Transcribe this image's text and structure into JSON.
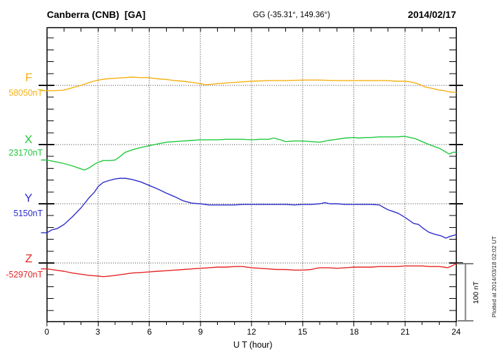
{
  "header": {
    "station_title": "Canberra (CNB)  [GA]",
    "geo_coords": "GG (-35.31°, 149.36°)",
    "date": "2014/02/17"
  },
  "x_axis": {
    "tick_labels": [
      "0",
      "3",
      "6",
      "9",
      "12",
      "15",
      "18",
      "21",
      "24"
    ],
    "title": "U T (hour)"
  },
  "scale_bar": {
    "label": "100 nT"
  },
  "plotted_note": "Plotted at 2014/03/18 02:02 UT",
  "chart_data": {
    "type": "line",
    "title": "Canberra (CNB) [GA] magnetogram 2014/02/17",
    "xlabel": "U T (hour)",
    "x_range": [
      0,
      24
    ],
    "x_gridlines_hours": [
      3,
      6,
      9,
      12,
      15,
      18,
      21
    ],
    "nT_per_division": 100,
    "grid": "dotted",
    "series": [
      {
        "component": "F",
        "label": "F",
        "base_label": "58050nT",
        "base_nT": 58050,
        "color": "#F5B011",
        "points": [
          [
            0,
            58041
          ],
          [
            0.5,
            58041
          ],
          [
            1,
            58042
          ],
          [
            1.5,
            58046
          ],
          [
            2,
            58050
          ],
          [
            2.5,
            58055
          ],
          [
            3,
            58059
          ],
          [
            3.5,
            58061
          ],
          [
            4,
            58062
          ],
          [
            4.5,
            58063
          ],
          [
            5,
            58064
          ],
          [
            5.5,
            58063
          ],
          [
            6,
            58063
          ],
          [
            6.5,
            58061
          ],
          [
            7,
            58060
          ],
          [
            7.5,
            58058
          ],
          [
            8,
            58057
          ],
          [
            8.5,
            58055
          ],
          [
            9,
            58053
          ],
          [
            9.3,
            58051
          ],
          [
            9.7,
            58052
          ],
          [
            10,
            58053
          ],
          [
            10.5,
            58054
          ],
          [
            11,
            58055
          ],
          [
            11.5,
            58056
          ],
          [
            12,
            58057
          ],
          [
            13,
            58058
          ],
          [
            14,
            58058
          ],
          [
            15,
            58059
          ],
          [
            16,
            58059
          ],
          [
            17,
            58058
          ],
          [
            18,
            58058
          ],
          [
            19,
            58058
          ],
          [
            19.5,
            58058
          ],
          [
            20,
            58058
          ],
          [
            20.5,
            58057
          ],
          [
            21,
            58057
          ],
          [
            21.3,
            58056
          ],
          [
            21.6,
            58054
          ],
          [
            21.9,
            58051
          ],
          [
            22.2,
            58047
          ],
          [
            22.6,
            58045
          ],
          [
            23,
            58042
          ],
          [
            23.3,
            58041
          ],
          [
            23.6,
            58039
          ],
          [
            24,
            58038
          ]
        ]
      },
      {
        "component": "X",
        "label": "X",
        "base_label": "23170nT",
        "base_nT": 23170,
        "color": "#1DC93B",
        "points": [
          [
            0,
            23144
          ],
          [
            0.5,
            23141
          ],
          [
            1,
            23138
          ],
          [
            1.5,
            23134
          ],
          [
            2,
            23129
          ],
          [
            2.2,
            23127
          ],
          [
            2.5,
            23131
          ],
          [
            2.8,
            23137
          ],
          [
            3,
            23140
          ],
          [
            3.3,
            23143
          ],
          [
            3.7,
            23143
          ],
          [
            4,
            23144
          ],
          [
            4.3,
            23150
          ],
          [
            4.6,
            23157
          ],
          [
            5,
            23161
          ],
          [
            5.5,
            23165
          ],
          [
            6,
            23168
          ],
          [
            6.5,
            23171
          ],
          [
            7,
            23174
          ],
          [
            7.5,
            23175
          ],
          [
            8,
            23176
          ],
          [
            8.5,
            23177
          ],
          [
            9,
            23178
          ],
          [
            9.5,
            23178
          ],
          [
            10,
            23178
          ],
          [
            10.5,
            23179
          ],
          [
            11,
            23179
          ],
          [
            11.5,
            23179
          ],
          [
            12,
            23178
          ],
          [
            12.5,
            23179
          ],
          [
            13,
            23179
          ],
          [
            13.3,
            23181
          ],
          [
            13.7,
            23178
          ],
          [
            14,
            23175
          ],
          [
            14.5,
            23176
          ],
          [
            15,
            23176
          ],
          [
            15.5,
            23175
          ],
          [
            16,
            23174
          ],
          [
            16.5,
            23177
          ],
          [
            17,
            23179
          ],
          [
            17.5,
            23181
          ],
          [
            18,
            23182
          ],
          [
            18.3,
            23181
          ],
          [
            18.7,
            23182
          ],
          [
            19,
            23182
          ],
          [
            19.5,
            23183
          ],
          [
            20,
            23183
          ],
          [
            20.5,
            23183
          ],
          [
            21,
            23184
          ],
          [
            21.3,
            23182
          ],
          [
            21.6,
            23180
          ],
          [
            22,
            23175
          ],
          [
            22.5,
            23169
          ],
          [
            23,
            23164
          ],
          [
            23.3,
            23159
          ],
          [
            23.6,
            23154
          ],
          [
            23.8,
            23157
          ],
          [
            24,
            23157
          ]
        ]
      },
      {
        "component": "Y",
        "label": "Y",
        "base_label": "5150nT",
        "base_nT": 5150,
        "color": "#2B2BCB",
        "points": [
          [
            0,
            5101
          ],
          [
            0.3,
            5106
          ],
          [
            0.6,
            5108
          ],
          [
            1,
            5115
          ],
          [
            1.5,
            5128
          ],
          [
            2,
            5143
          ],
          [
            2.5,
            5161
          ],
          [
            2.8,
            5170
          ],
          [
            3,
            5179
          ],
          [
            3.3,
            5186
          ],
          [
            3.6,
            5189
          ],
          [
            4,
            5192
          ],
          [
            4.3,
            5193
          ],
          [
            4.6,
            5193
          ],
          [
            5,
            5191
          ],
          [
            5.5,
            5187
          ],
          [
            6,
            5181
          ],
          [
            6.5,
            5175
          ],
          [
            7,
            5168
          ],
          [
            7.5,
            5162
          ],
          [
            8,
            5155
          ],
          [
            8.5,
            5151
          ],
          [
            9,
            5150
          ],
          [
            9.5,
            5148
          ],
          [
            10,
            5148
          ],
          [
            11,
            5148
          ],
          [
            11.5,
            5149
          ],
          [
            12,
            5149
          ],
          [
            12.5,
            5149
          ],
          [
            13,
            5149
          ],
          [
            13.5,
            5149
          ],
          [
            14,
            5149
          ],
          [
            14.5,
            5148
          ],
          [
            15,
            5149
          ],
          [
            15.5,
            5149
          ],
          [
            16,
            5150
          ],
          [
            16.3,
            5152
          ],
          [
            16.6,
            5150
          ],
          [
            17,
            5150
          ],
          [
            17.5,
            5149
          ],
          [
            18,
            5149
          ],
          [
            18.5,
            5149
          ],
          [
            19,
            5149
          ],
          [
            19.5,
            5148
          ],
          [
            19.8,
            5143
          ],
          [
            20,
            5140
          ],
          [
            20.3,
            5137
          ],
          [
            20.6,
            5134
          ],
          [
            21,
            5127
          ],
          [
            21.3,
            5121
          ],
          [
            21.5,
            5117
          ],
          [
            21.8,
            5115
          ],
          [
            22,
            5110
          ],
          [
            22.4,
            5102
          ],
          [
            22.7,
            5099
          ],
          [
            23.1,
            5096
          ],
          [
            23.4,
            5092
          ],
          [
            23.65,
            5095
          ],
          [
            23.9,
            5097
          ],
          [
            24,
            5098
          ]
        ]
      },
      {
        "component": "Z",
        "label": "Z",
        "base_label": "-52970nT",
        "base_nT": -52970,
        "color": "#E62222",
        "points": [
          [
            0,
            -52980
          ],
          [
            0.5,
            -52982
          ],
          [
            1,
            -52984
          ],
          [
            1.5,
            -52987
          ],
          [
            2,
            -52989
          ],
          [
            2.5,
            -52991
          ],
          [
            3,
            -52992
          ],
          [
            3.3,
            -52993
          ],
          [
            3.7,
            -52992
          ],
          [
            4,
            -52991
          ],
          [
            4.5,
            -52989
          ],
          [
            5,
            -52987
          ],
          [
            5.5,
            -52986
          ],
          [
            6,
            -52985
          ],
          [
            6.5,
            -52984
          ],
          [
            7,
            -52983
          ],
          [
            7.5,
            -52982
          ],
          [
            8,
            -52981
          ],
          [
            8.5,
            -52980
          ],
          [
            9,
            -52979
          ],
          [
            9.5,
            -52978
          ],
          [
            10,
            -52977
          ],
          [
            10.5,
            -52977
          ],
          [
            11,
            -52976
          ],
          [
            11.5,
            -52976
          ],
          [
            12,
            -52978
          ],
          [
            12.5,
            -52979
          ],
          [
            13,
            -52980
          ],
          [
            13.5,
            -52981
          ],
          [
            14,
            -52981
          ],
          [
            14.5,
            -52982
          ],
          [
            15,
            -52982
          ],
          [
            15.5,
            -52981
          ],
          [
            15.8,
            -52979
          ],
          [
            16,
            -52978
          ],
          [
            16.5,
            -52978
          ],
          [
            17,
            -52979
          ],
          [
            17.5,
            -52978
          ],
          [
            18,
            -52977
          ],
          [
            18.5,
            -52977
          ],
          [
            19,
            -52977
          ],
          [
            19.5,
            -52976
          ],
          [
            20,
            -52976
          ],
          [
            20.5,
            -52976
          ],
          [
            21,
            -52975
          ],
          [
            21.5,
            -52975
          ],
          [
            22,
            -52975
          ],
          [
            22.5,
            -52976
          ],
          [
            23,
            -52976
          ],
          [
            23.3,
            -52977
          ],
          [
            23.5,
            -52978
          ],
          [
            23.75,
            -52975
          ],
          [
            24,
            -52971
          ]
        ]
      }
    ]
  }
}
